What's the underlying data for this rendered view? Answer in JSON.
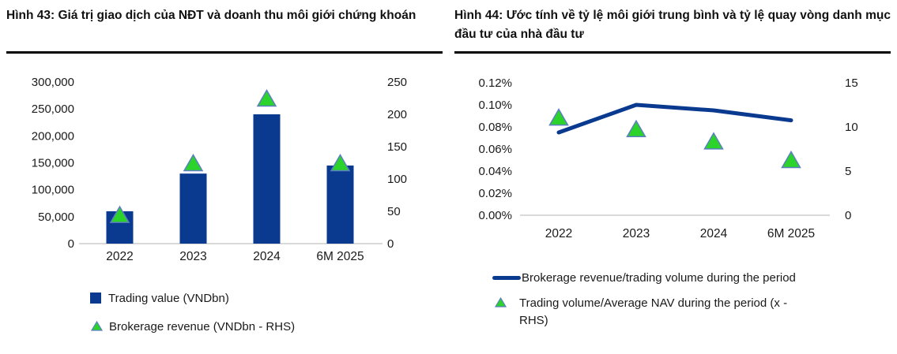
{
  "colors": {
    "navy": "#0a3a8f",
    "green": "#2bd32b",
    "triangle_border": "#5b7fc0",
    "baseline_gray": "#d9d9d9",
    "title_underline": "#000000",
    "text": "#1a1a1a"
  },
  "chart_data": [
    {
      "type": "bar",
      "title": "Hình 43: Giá trị giao dịch của NĐT và doanh thu môi giới chứng khoán",
      "categories": [
        "2022",
        "2023",
        "2024",
        "6M 2025"
      ],
      "series": [
        {
          "name": "Trading value (VNDbn)",
          "kind": "bar",
          "axis": "left",
          "values": [
            60000,
            130000,
            240000,
            145000
          ],
          "color": "#0a3a8f"
        },
        {
          "name": "Brokerage revenue (VNDbn - RHS)",
          "kind": "triangle",
          "axis": "right",
          "values": [
            45,
            125,
            225,
            125
          ],
          "color": "#2bd32b"
        }
      ],
      "left_axis": {
        "min": 0,
        "max": 300000,
        "step": 50000,
        "format": "thousands"
      },
      "right_axis": {
        "min": 0,
        "max": 250,
        "step": 50,
        "format": "plain"
      },
      "grid": "baseline-only",
      "legend_position": "bottom"
    },
    {
      "type": "line",
      "title": "Hình 44: Ước tính về tỷ lệ môi giới trung bình và tỷ lệ quay vòng danh mục đầu tư của nhà đầu tư",
      "categories": [
        "2022",
        "2023",
        "2024",
        "6M 2025"
      ],
      "series": [
        {
          "name": "Brokerage revenue/trading volume during the period",
          "kind": "line",
          "axis": "left",
          "values": [
            0.075,
            0.1,
            0.095,
            0.086
          ],
          "color": "#0a3a8f"
        },
        {
          "name": "Trading volume/Average NAV during the period (x - RHS)",
          "kind": "triangle",
          "axis": "right",
          "values": [
            11.1,
            9.8,
            8.4,
            6.3
          ],
          "color": "#2bd32b"
        }
      ],
      "left_axis": {
        "min": 0,
        "max": 0.12,
        "step": 0.02,
        "format": "percent2"
      },
      "right_axis": {
        "min": 0,
        "max": 15,
        "step": 5,
        "format": "plain"
      },
      "grid": "baseline-only",
      "legend_position": "bottom"
    }
  ]
}
